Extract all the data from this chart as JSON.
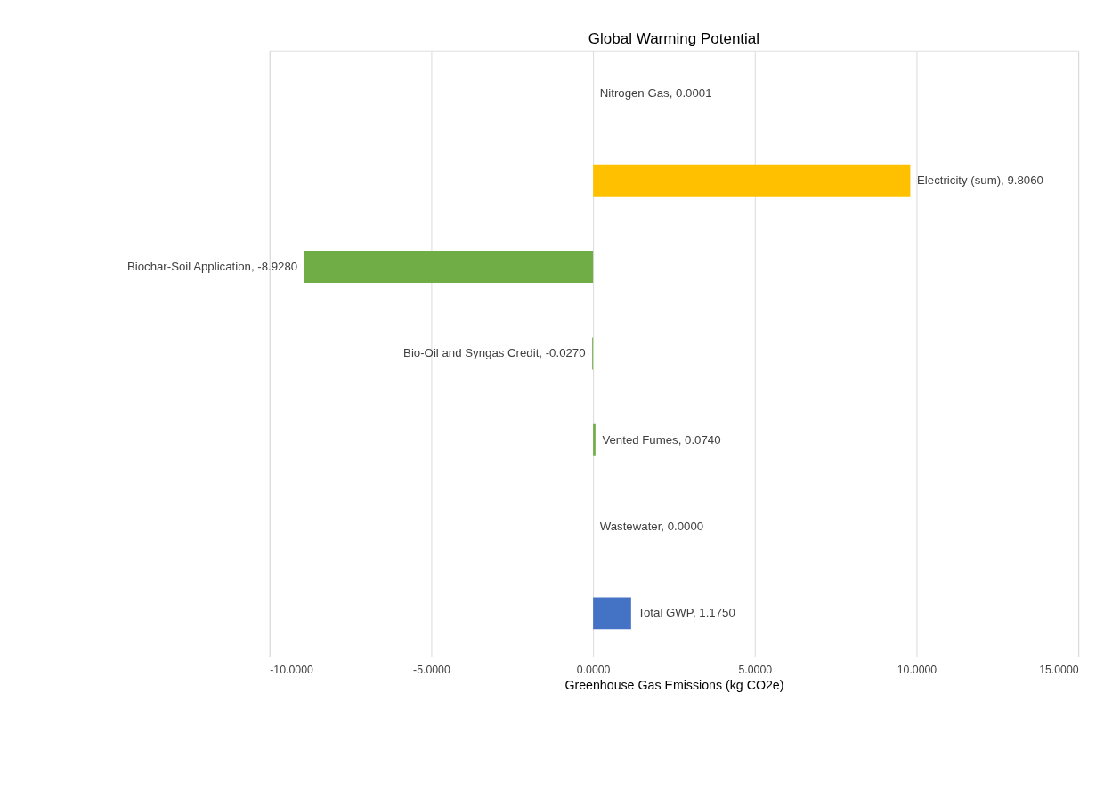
{
  "chart_data": {
    "type": "bar",
    "orientation": "horizontal",
    "title": "Global Warming Potential",
    "xlabel": "Greenhouse Gas Emissions (kg CO2e)",
    "categories": [
      null,
      null,
      null,
      null,
      null,
      null,
      null
    ],
    "values": [
      0.0001,
      9.806,
      -8.928,
      -0.027,
      0.074,
      0.0,
      1.175
    ],
    "colors": [
      "#70ad47",
      "#ffc000",
      "#70ad47",
      "#70ad47",
      "#70ad47",
      "#70ad47",
      "#4472c4"
    ],
    "value_labels": [
      "Nitrogen Gas, 0.0001",
      "Electricity (sum), 9.8060",
      "Biochar-Soil Application, -8.9280",
      "Bio-Oil and Syngas Credit, -0.0270",
      "Vented Fumes, 0.0740",
      "Wastewater, 0.0000",
      "Total GWP, 1.1750"
    ],
    "xlim": [
      -10,
      15
    ],
    "xticks": [
      {
        "value": -10,
        "label": "-10.0000"
      },
      {
        "value": -5,
        "label": "-5.0000"
      },
      {
        "value": 0,
        "label": "0.0000"
      },
      {
        "value": 5,
        "label": "5.0000"
      },
      {
        "value": 10,
        "label": "10.0000"
      },
      {
        "value": 15,
        "label": "15.0000"
      }
    ],
    "grid": "x",
    "tick_labels": "x"
  }
}
